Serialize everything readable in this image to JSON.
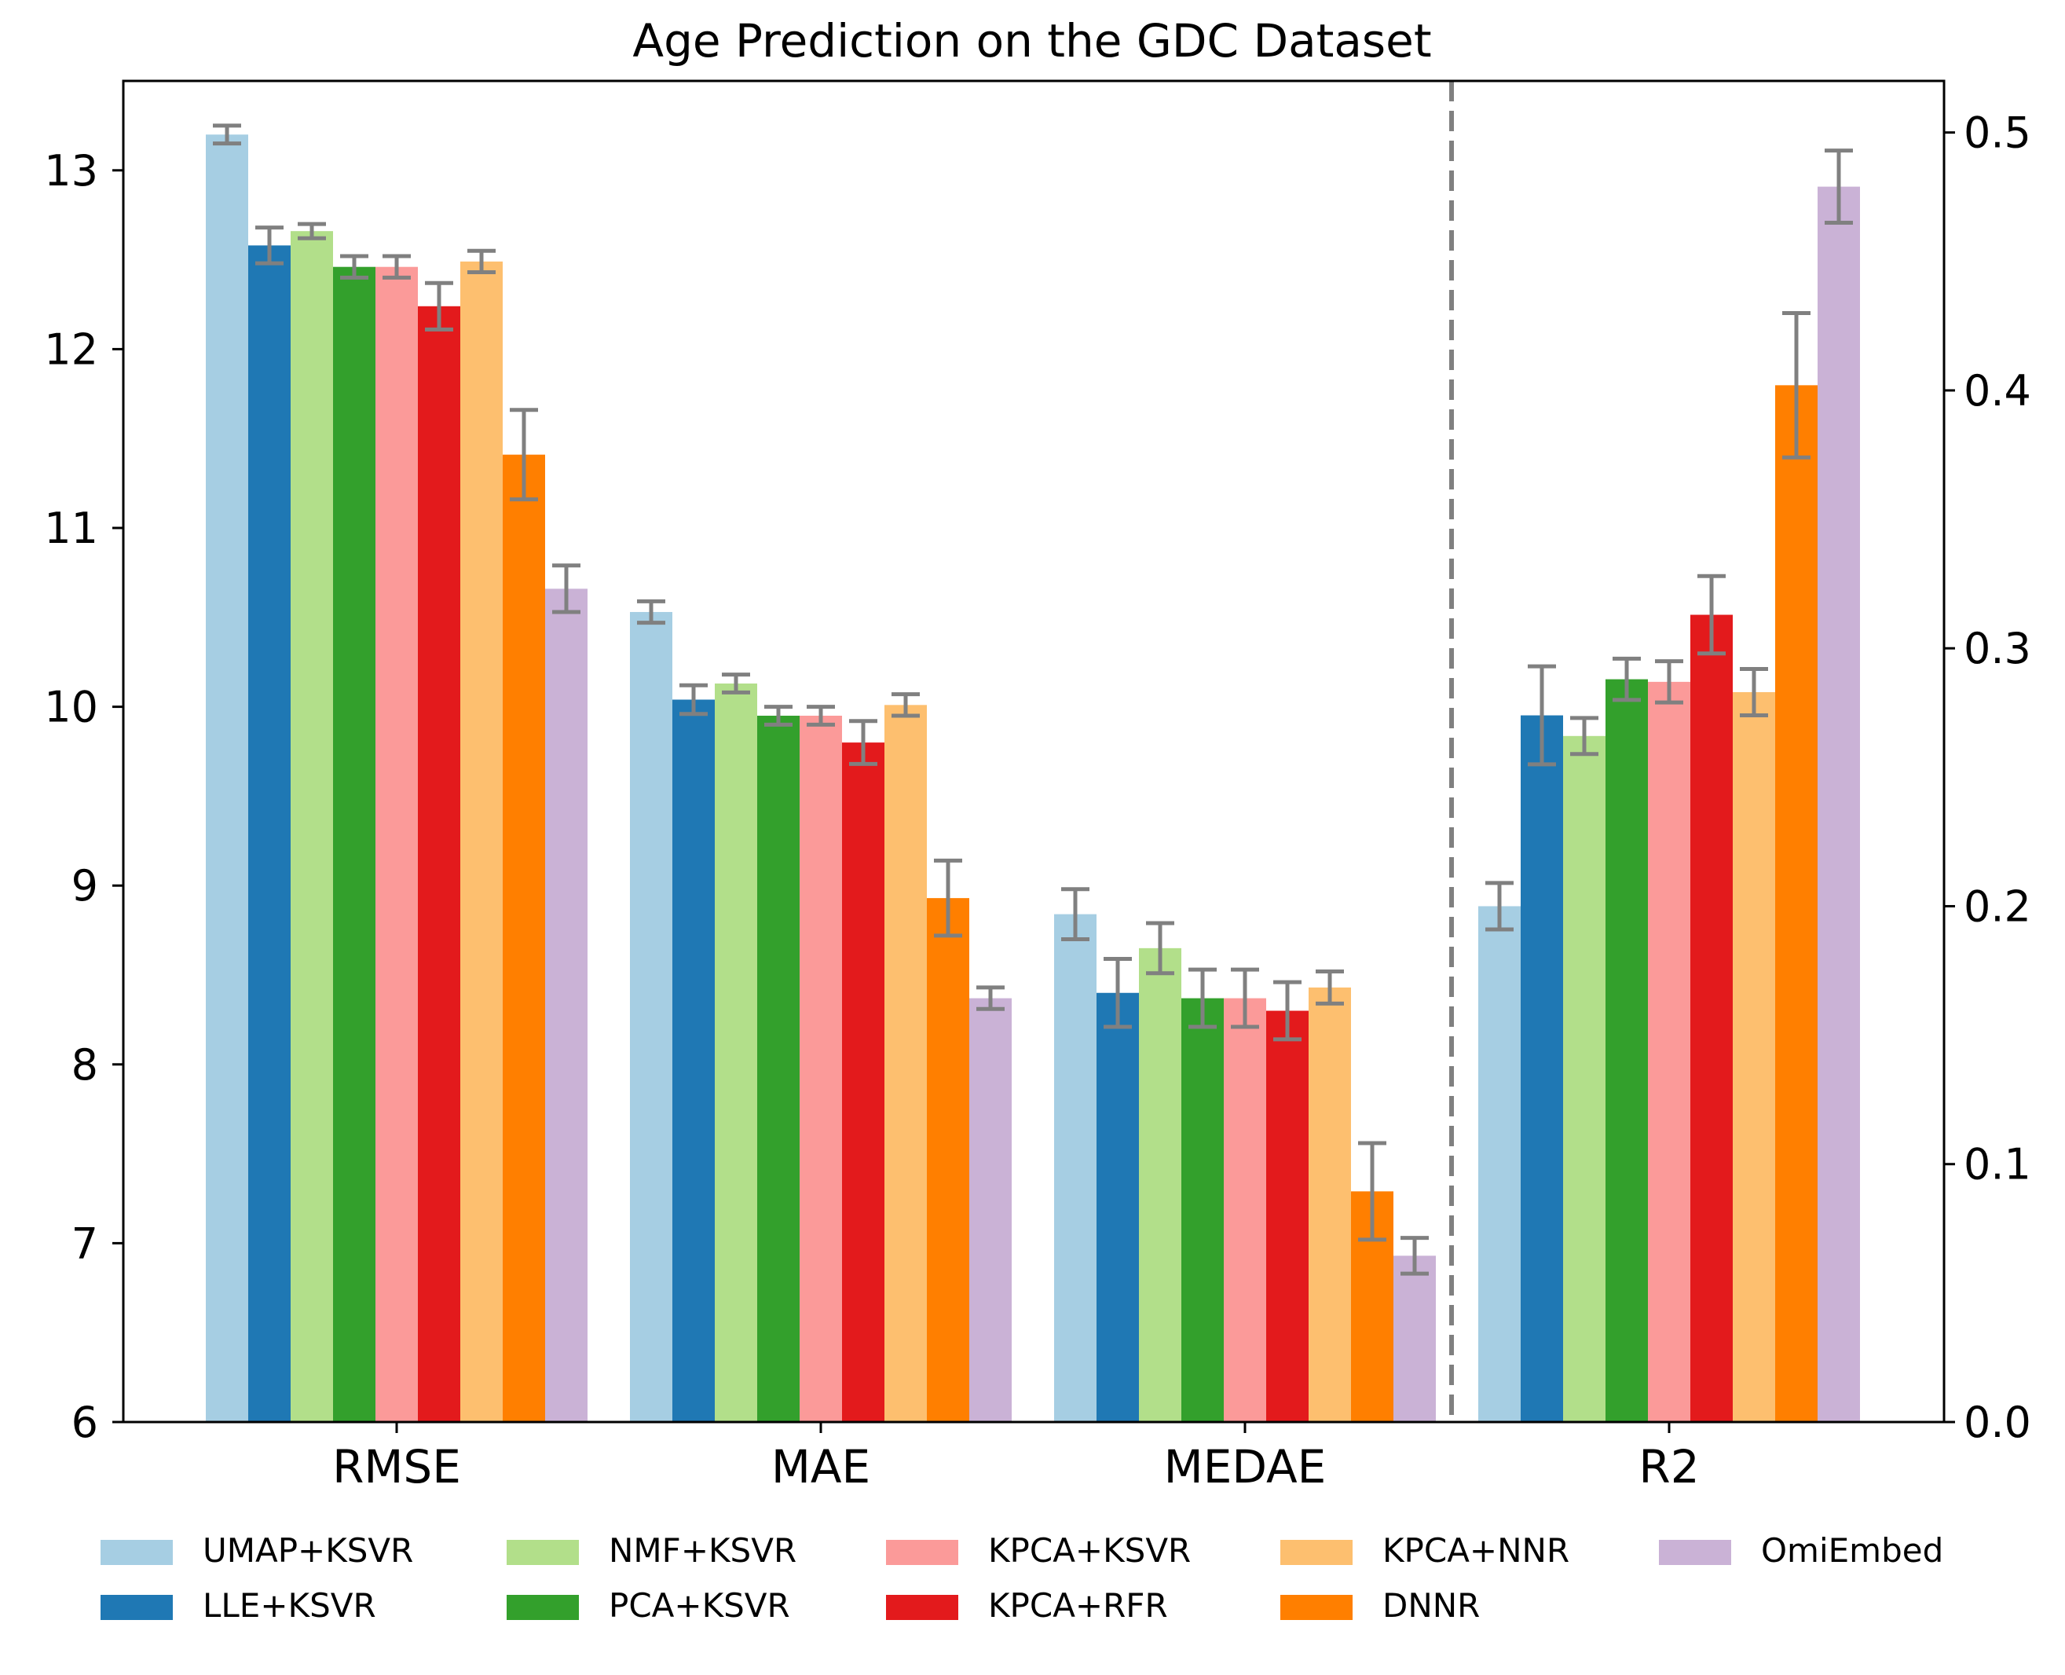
{
  "chart_data": {
    "type": "bar",
    "title": "Age Prediction on the GDC Dataset",
    "categories": [
      "RMSE",
      "MAE",
      "MEDAE",
      "R2"
    ],
    "left_axis": {
      "ylim": [
        6,
        13.5
      ],
      "ticks": [
        6,
        7,
        8,
        9,
        10,
        11,
        12,
        13
      ],
      "applies_to": [
        "RMSE",
        "MAE",
        "MEDAE"
      ]
    },
    "right_axis": {
      "ylim": [
        0,
        0.52
      ],
      "ticks": [
        "0.0",
        "0.1",
        "0.2",
        "0.3",
        "0.4",
        "0.5"
      ],
      "applies_to": [
        "R2"
      ]
    },
    "separator": "dashed line between MEDAE and R2",
    "legend_position": "bottom",
    "error_bar_color": "#808080",
    "series": [
      {
        "name": "UMAP+KSVR",
        "color": "#a6cee3",
        "values": [
          13.2,
          10.53,
          8.84,
          0.2
        ],
        "errors": [
          0.05,
          0.06,
          0.14,
          0.009
        ]
      },
      {
        "name": "LLE+KSVR",
        "color": "#1f78b4",
        "values": [
          12.58,
          10.04,
          8.4,
          0.274
        ],
        "errors": [
          0.1,
          0.08,
          0.19,
          0.019
        ]
      },
      {
        "name": "NMF+KSVR",
        "color": "#b2df8a",
        "values": [
          12.66,
          10.13,
          8.65,
          0.266
        ],
        "errors": [
          0.04,
          0.05,
          0.14,
          0.007
        ]
      },
      {
        "name": "PCA+KSVR",
        "color": "#33a02c",
        "values": [
          12.46,
          9.95,
          8.37,
          0.288
        ],
        "errors": [
          0.06,
          0.05,
          0.16,
          0.008
        ]
      },
      {
        "name": "KPCA+KSVR",
        "color": "#fb9a99",
        "values": [
          12.46,
          9.95,
          8.37,
          0.287
        ],
        "errors": [
          0.06,
          0.05,
          0.16,
          0.008
        ]
      },
      {
        "name": "KPCA+RFR",
        "color": "#e31a1c",
        "values": [
          12.24,
          9.8,
          8.3,
          0.313
        ],
        "errors": [
          0.13,
          0.12,
          0.16,
          0.015
        ]
      },
      {
        "name": "KPCA+NNR",
        "color": "#fdbf6f",
        "values": [
          12.49,
          10.01,
          8.43,
          0.283
        ],
        "errors": [
          0.06,
          0.06,
          0.09,
          0.009
        ]
      },
      {
        "name": "DNNR",
        "color": "#ff7f00",
        "values": [
          11.41,
          8.93,
          7.29,
          0.402
        ],
        "errors": [
          0.25,
          0.21,
          0.27,
          0.028
        ]
      },
      {
        "name": "OmiEmbed",
        "color": "#cab2d6",
        "values": [
          10.66,
          8.37,
          6.93,
          0.479
        ],
        "errors": [
          0.13,
          0.06,
          0.1,
          0.014
        ]
      }
    ]
  }
}
